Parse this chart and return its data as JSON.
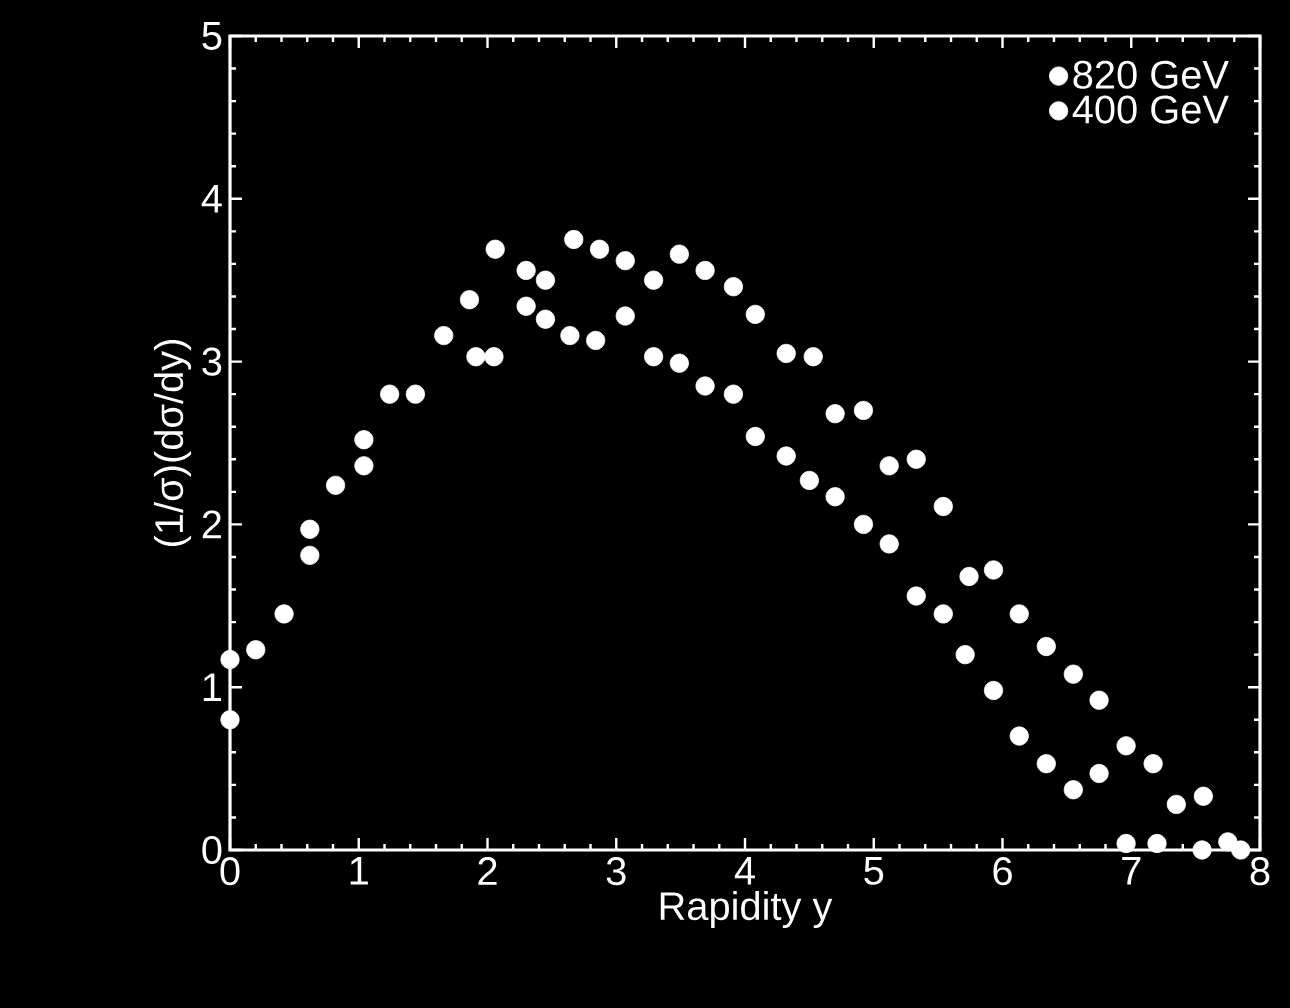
{
  "chart_data": {
    "type": "scatter",
    "xlabel": "Rapidity y",
    "ylabel": "(1/σ)(dσ/dy)",
    "xlim": [
      0,
      8
    ],
    "ylim": [
      0,
      5
    ],
    "xticks": [
      0,
      1,
      2,
      3,
      4,
      5,
      6,
      7,
      8
    ],
    "yticks": [
      0,
      1,
      2,
      3,
      4,
      5
    ],
    "legend": "top right",
    "marker": "circle",
    "grid": false,
    "series": [
      {
        "name": "820 GeV",
        "color": "#ffffff",
        "x": [
          0.0,
          0.2,
          0.62,
          1.04,
          1.44,
          1.86,
          2.06,
          2.3,
          2.45,
          2.67,
          2.87,
          3.07,
          3.29,
          3.49,
          3.69,
          3.91,
          4.08,
          4.32,
          4.53,
          4.7,
          4.92,
          5.12,
          5.33,
          5.54,
          5.74,
          5.93,
          6.13,
          6.34,
          6.55,
          6.75,
          6.96,
          7.17,
          7.35,
          7.56,
          7.75
        ],
        "values": [
          1.17,
          1.23,
          1.97,
          2.52,
          2.8,
          3.38,
          3.69,
          3.56,
          3.5,
          3.75,
          3.69,
          3.62,
          3.5,
          3.66,
          3.56,
          3.46,
          3.29,
          3.05,
          3.03,
          2.68,
          2.7,
          2.36,
          2.4,
          2.11,
          1.68,
          1.72,
          1.45,
          1.25,
          1.08,
          0.92,
          0.64,
          0.53,
          0.28,
          0.33,
          0.05
        ]
      },
      {
        "name": "400 GeV",
        "color": "#ffffff",
        "x": [
          0.0,
          0.42,
          0.62,
          0.82,
          1.04,
          1.24,
          1.66,
          1.91,
          2.05,
          2.3,
          2.45,
          2.64,
          2.84,
          3.07,
          3.29,
          3.49,
          3.69,
          3.91,
          4.08,
          4.32,
          4.5,
          4.7,
          4.92,
          5.12,
          5.33,
          5.54,
          5.71,
          5.93,
          6.13,
          6.34,
          6.55,
          6.75,
          6.96,
          7.2,
          7.55,
          7.85
        ],
        "values": [
          0.8,
          1.45,
          1.81,
          2.24,
          2.36,
          2.8,
          3.16,
          3.03,
          3.03,
          3.34,
          3.26,
          3.16,
          3.13,
          3.28,
          3.03,
          2.99,
          2.85,
          2.8,
          2.54,
          2.42,
          2.27,
          2.17,
          2.0,
          1.88,
          1.56,
          1.45,
          1.2,
          0.98,
          0.7,
          0.53,
          0.37,
          0.47,
          0.04,
          0.04,
          0.0,
          0.0
        ]
      }
    ]
  }
}
